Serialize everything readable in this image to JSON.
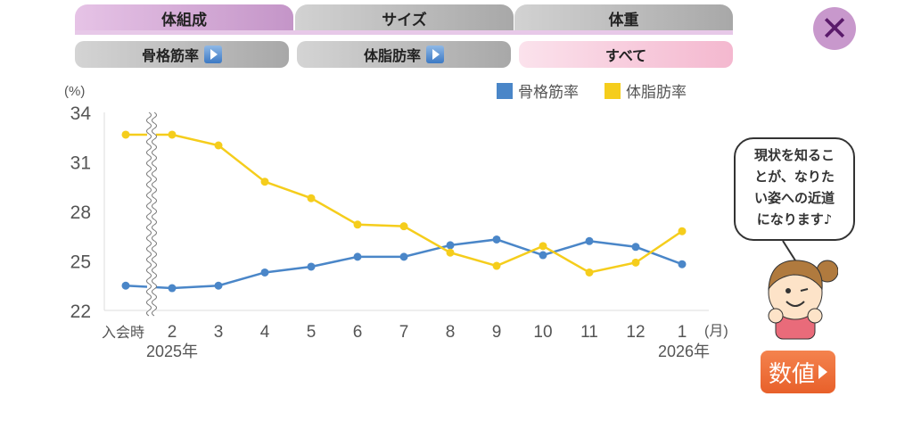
{
  "tabs": [
    {
      "label": "体組成",
      "active": true
    },
    {
      "label": "サイズ",
      "active": false
    },
    {
      "label": "体重",
      "active": false
    }
  ],
  "subtabs": [
    {
      "label": "骨格筋率",
      "icon": "play-icon"
    },
    {
      "label": "体脂肪率",
      "icon": "play-icon"
    },
    {
      "label": "すべて",
      "active": true
    }
  ],
  "close_label": "✕",
  "bubble_lines": [
    "現状を知るこ",
    "とが、なりた",
    "い姿への近道",
    "になります♪"
  ],
  "numbers_button": "数値",
  "chart_data": {
    "type": "line",
    "ylabel": "(%)",
    "xunit": "(月)",
    "ylim": [
      22,
      34
    ],
    "yticks": [
      "34",
      "31",
      "28",
      "25",
      "22"
    ],
    "categories": [
      "入会時",
      "2",
      "3",
      "4",
      "5",
      "6",
      "7",
      "8",
      "9",
      "10",
      "11",
      "12",
      "1"
    ],
    "year_labels": [
      "2025年",
      "2026年"
    ],
    "axis_break_after": "入会時",
    "series": [
      {
        "name": "骨格筋率",
        "color": "#4a86c8",
        "values": [
          23.5,
          23.35,
          23.5,
          24.3,
          24.65,
          25.25,
          25.25,
          25.95,
          26.3,
          25.35,
          26.2,
          25.85,
          24.8
        ]
      },
      {
        "name": "体脂肪率",
        "color": "#f5cd1c",
        "values": [
          32.65,
          32.65,
          32.0,
          29.8,
          28.8,
          27.2,
          27.1,
          25.5,
          24.7,
          25.9,
          24.3,
          24.9,
          26.8
        ]
      }
    ]
  }
}
